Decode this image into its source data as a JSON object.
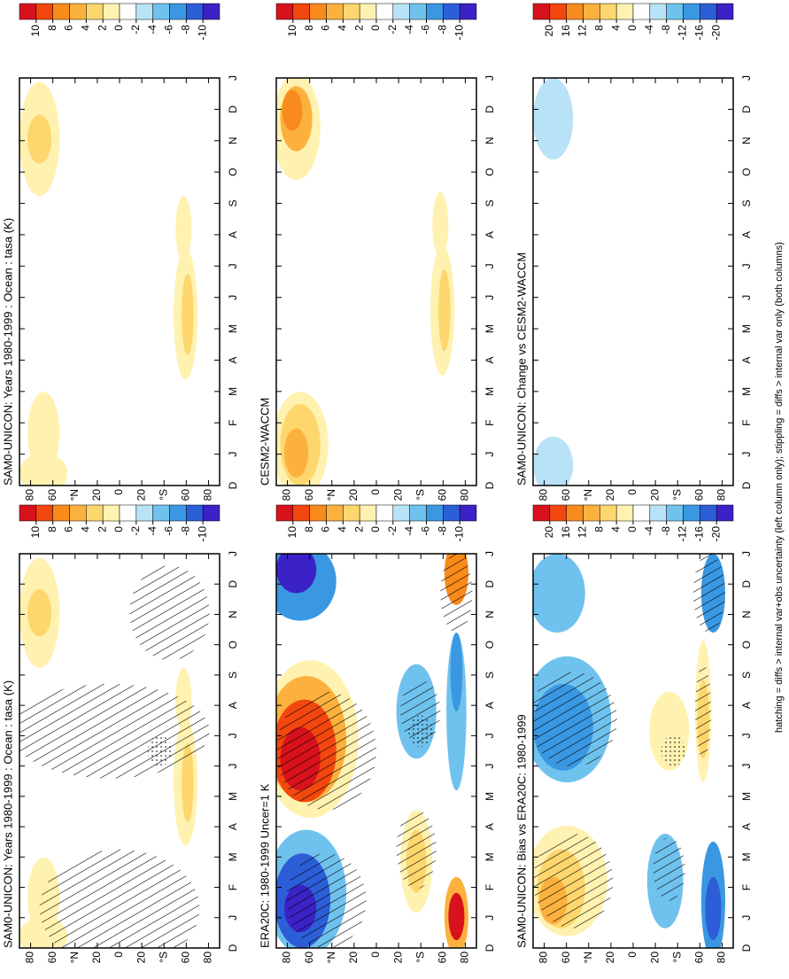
{
  "chart_data": [
    {
      "type": "contour",
      "title": "SAM0-UNICON: Years 1980-1999 : Ocean : tasa (K)",
      "categories": [
        "D",
        "J",
        "F",
        "M",
        "A",
        "M",
        "J",
        "J",
        "A",
        "S",
        "O",
        "N",
        "D",
        "J"
      ],
      "ylim": [
        -90,
        90
      ],
      "yticks": [
        80,
        60,
        {
          "value": 40,
          "label": "°N"
        },
        20,
        0,
        {
          "value": -20,
          "label": "20"
        },
        {
          "value": -40,
          "label": "°S"
        },
        {
          "value": -60,
          "label": "60"
        },
        {
          "value": -80,
          "label": "80"
        }
      ],
      "colorbar": {
        "ticks": [
          10,
          8,
          6,
          4,
          2,
          0,
          -2,
          -4,
          -6,
          -8,
          -10
        ],
        "colors": [
          "#d8121c",
          "#f2470f",
          "#f98a1c",
          "#fcb13e",
          "#fdd66e",
          "#fff2b0",
          "#ffffff",
          "#b8e2f6",
          "#70c2ee",
          "#3a98e2",
          "#2c5ed8",
          "#3a22c6"
        ]
      }
    },
    {
      "type": "contour",
      "title": "SAM0-UNICON: Years 1980-1999 : Ocean : tasa (K)",
      "categories": [
        "D",
        "J",
        "F",
        "M",
        "A",
        "M",
        "J",
        "J",
        "A",
        "S",
        "O",
        "N",
        "D",
        "J"
      ],
      "ylim": [
        -90,
        90
      ],
      "yticks": [
        80,
        60,
        {
          "value": 40,
          "label": "°N"
        },
        20,
        0,
        {
          "value": -20,
          "label": "20"
        },
        {
          "value": -40,
          "label": "°S"
        },
        {
          "value": -60,
          "label": "60"
        },
        {
          "value": -80,
          "label": "80"
        }
      ],
      "colorbar": {
        "ticks": [
          10,
          8,
          6,
          4,
          2,
          0,
          -2,
          -4,
          -6,
          -8,
          -10
        ],
        "colors": [
          "#d8121c",
          "#f2470f",
          "#f98a1c",
          "#fcb13e",
          "#fdd66e",
          "#fff2b0",
          "#ffffff",
          "#b8e2f6",
          "#70c2ee",
          "#3a98e2",
          "#2c5ed8",
          "#3a22c6"
        ]
      }
    },
    {
      "type": "contour",
      "title": "ERA20C: 1980-1999 Uncer=1 K",
      "categories": [
        "D",
        "J",
        "F",
        "M",
        "A",
        "M",
        "J",
        "J",
        "A",
        "S",
        "O",
        "N",
        "D",
        "J"
      ],
      "ylim": [
        -90,
        90
      ],
      "yticks": [
        80,
        60,
        {
          "value": 40,
          "label": "°N"
        },
        20,
        0,
        {
          "value": -20,
          "label": "20"
        },
        {
          "value": -40,
          "label": "°S"
        },
        {
          "value": -60,
          "label": "60"
        },
        {
          "value": -80,
          "label": "80"
        }
      ],
      "colorbar": {
        "ticks": [
          10,
          8,
          6,
          4,
          2,
          0,
          -2,
          -4,
          -6,
          -8,
          -10
        ],
        "colors": [
          "#d8121c",
          "#f2470f",
          "#f98a1c",
          "#fcb13e",
          "#fdd66e",
          "#fff2b0",
          "#ffffff",
          "#b8e2f6",
          "#70c2ee",
          "#3a98e2",
          "#2c5ed8",
          "#3a22c6"
        ]
      }
    },
    {
      "type": "contour",
      "title": "CESM2-WACCM",
      "categories": [
        "D",
        "J",
        "F",
        "M",
        "A",
        "M",
        "J",
        "J",
        "A",
        "S",
        "O",
        "N",
        "D",
        "J"
      ],
      "ylim": [
        -90,
        90
      ],
      "yticks": [
        80,
        60,
        {
          "value": 40,
          "label": "°N"
        },
        20,
        0,
        {
          "value": -20,
          "label": "20"
        },
        {
          "value": -40,
          "label": "°S"
        },
        {
          "value": -60,
          "label": "60"
        },
        {
          "value": -80,
          "label": "80"
        }
      ],
      "colorbar": {
        "ticks": [
          10,
          8,
          6,
          4,
          2,
          0,
          -2,
          -4,
          -6,
          -8,
          -10
        ],
        "colors": [
          "#d8121c",
          "#f2470f",
          "#f98a1c",
          "#fcb13e",
          "#fdd66e",
          "#fff2b0",
          "#ffffff",
          "#b8e2f6",
          "#70c2ee",
          "#3a98e2",
          "#2c5ed8",
          "#3a22c6"
        ]
      }
    },
    {
      "type": "contour",
      "title": "SAM0-UNICON: Bias vs ERA20C: 1980-1999",
      "categories": [
        "D",
        "J",
        "F",
        "M",
        "A",
        "M",
        "J",
        "J",
        "A",
        "S",
        "O",
        "N",
        "D",
        "J"
      ],
      "ylim": [
        -90,
        90
      ],
      "yticks": [
        80,
        60,
        {
          "value": 40,
          "label": "°N"
        },
        20,
        0,
        {
          "value": -20,
          "label": "20"
        },
        {
          "value": -40,
          "label": "°S"
        },
        {
          "value": -60,
          "label": "60"
        },
        {
          "value": -80,
          "label": "80"
        }
      ],
      "colorbar": {
        "ticks": [
          20,
          16,
          12,
          8,
          4,
          0,
          -4,
          -8,
          -12,
          -16,
          -20
        ],
        "colors": [
          "#d8121c",
          "#f2470f",
          "#f98a1c",
          "#fcb13e",
          "#fdd66e",
          "#fff2b0",
          "#ffffff",
          "#b8e2f6",
          "#70c2ee",
          "#3a98e2",
          "#2c5ed8",
          "#3a22c6"
        ]
      }
    },
    {
      "type": "contour",
      "title": "SAM0-UNICON: Change vs CESM2-WACCM",
      "categories": [
        "D",
        "J",
        "F",
        "M",
        "A",
        "M",
        "J",
        "J",
        "A",
        "S",
        "O",
        "N",
        "D",
        "J"
      ],
      "ylim": [
        -90,
        90
      ],
      "yticks": [
        80,
        60,
        {
          "value": 40,
          "label": "°N"
        },
        20,
        0,
        {
          "value": -20,
          "label": "20"
        },
        {
          "value": -40,
          "label": "°S"
        },
        {
          "value": -60,
          "label": "60"
        },
        {
          "value": -80,
          "label": "80"
        }
      ],
      "colorbar": {
        "ticks": [
          20,
          16,
          12,
          8,
          4,
          0,
          -4,
          -8,
          -12,
          -16,
          -20
        ],
        "colors": [
          "#d8121c",
          "#f2470f",
          "#f98a1c",
          "#fcb13e",
          "#fdd66e",
          "#fff2b0",
          "#ffffff",
          "#b8e2f6",
          "#70c2ee",
          "#3a98e2",
          "#2c5ed8",
          "#3a22c6"
        ]
      }
    }
  ],
  "footer": "hatching = diffs > internal var+obs uncertainty (left column only); stippling = diffs > internal var only (both columns)"
}
